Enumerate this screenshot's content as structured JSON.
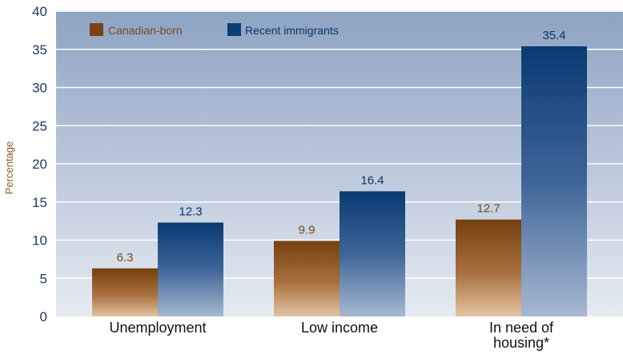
{
  "chart_data": {
    "type": "bar",
    "title": "",
    "xlabel": "",
    "ylabel": "Percentage",
    "ylim": [
      0,
      40
    ],
    "yticks": [
      0,
      5,
      10,
      15,
      20,
      25,
      30,
      35,
      40
    ],
    "grid": true,
    "legend_position": "top-left",
    "categories": [
      "Unemployment",
      "Low income",
      "In need of housing*"
    ],
    "category_label_lines": [
      [
        "Unemployment"
      ],
      [
        "Low income"
      ],
      [
        "In need of",
        "housing*"
      ]
    ],
    "series": [
      {
        "name": "Canadian-born",
        "values": [
          6.3,
          9.9,
          12.7
        ],
        "value_labels": [
          "6.3",
          "9.9",
          "12.7"
        ],
        "color": "#7a4210",
        "label_color": "#7a4a1a"
      },
      {
        "name": "Recent immigrants",
        "values": [
          12.3,
          16.4,
          35.4
        ],
        "value_labels": [
          "12.3",
          "16.4",
          "35.4"
        ],
        "color": "#0b3e75",
        "label_color": "#0b3568"
      }
    ]
  }
}
